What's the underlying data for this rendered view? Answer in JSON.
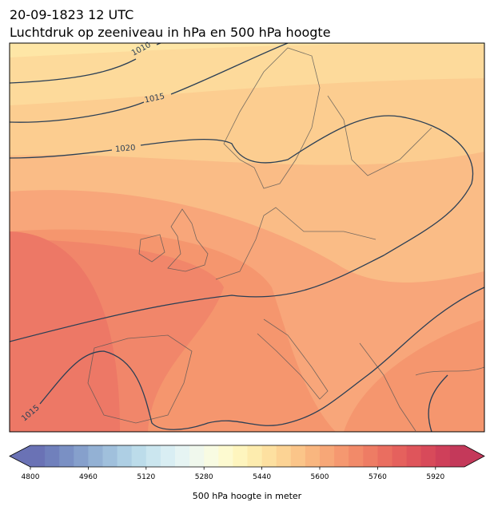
{
  "header": {
    "date": "20-09-1823 12 UTC",
    "title": "Luchtdruk op zeeniveau in hPa en 500 hPa hoogte"
  },
  "contour_labels": [
    "1010",
    "1015",
    "1020",
    "1015"
  ],
  "colorbar": {
    "lim": [
      4800,
      6000
    ],
    "ticks": [
      4800,
      4960,
      5120,
      5280,
      5440,
      5600,
      5760,
      5920
    ],
    "label": "500 hPa hoogte in meter",
    "colors": [
      "#6a72b5",
      "#7080bc",
      "#7a90c4",
      "#86a0cc",
      "#93b1d4",
      "#a0c0dc",
      "#aecfe4",
      "#bcdcea",
      "#cbe6ef",
      "#d9eef3",
      "#e6f4f3",
      "#f0f8ed",
      "#f8fbe2",
      "#fdfad0",
      "#fef5be",
      "#fdecae",
      "#fde0a0",
      "#fcd394",
      "#fbc589",
      "#f9b67f",
      "#f7a777",
      "#f59870",
      "#f28a69",
      "#ee7c64",
      "#ea6e60",
      "#e5615d",
      "#df555b",
      "#d84a5a",
      "#cf405a",
      "#c4395a"
    ]
  }
}
